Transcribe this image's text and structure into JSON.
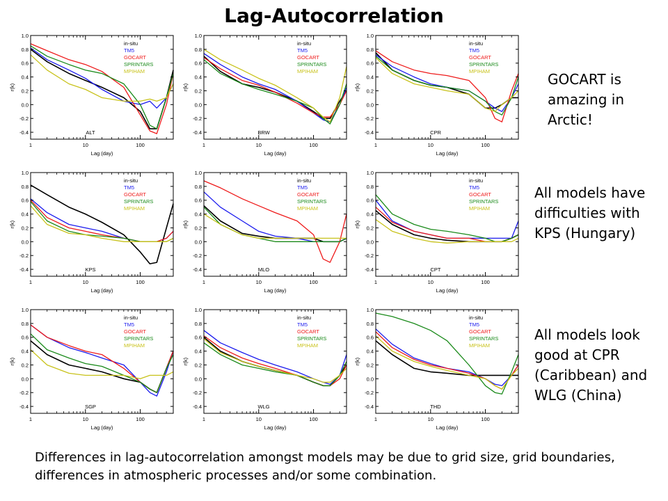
{
  "title": "Lag-Autocorrelation",
  "annotations": [
    "GOCART is\namazing in\nArctic!",
    "All models have\ndifficulties with\nKPS (Hungary)",
    "All models look\ngood at CPR\n(Caribbean) and\nWLG (China)"
  ],
  "footer": {
    "line1": "Differences in lag-autocorrelation amongst models may be due to grid size, grid boundaries,",
    "line2": "differences in atmospheric processes and/or some combination."
  },
  "colors": {
    "in-situ": "#000000",
    "TM5": "#1a1aee",
    "GOCART": "#ee1a1a",
    "SPRINTARS": "#1a8a1a",
    "MPIHAM": "#c8c21a"
  },
  "chart_data": [
    {
      "type": "line",
      "station": "ALT",
      "xlabel": "Lag (day)",
      "ylabel": "r(k)",
      "xscale": "log",
      "xlim": [
        1,
        400
      ],
      "ylim": [
        -0.5,
        1.0
      ],
      "xticks": [
        1,
        10,
        100
      ],
      "yticks": [
        -0.4,
        -0.2,
        0.0,
        0.2,
        0.4,
        0.6,
        0.8,
        1.0
      ],
      "legend": [
        "in-situ",
        "TM5",
        "GOCART",
        "SPRINTARS",
        "MPIHAM"
      ],
      "x": [
        1,
        2,
        5,
        10,
        20,
        50,
        100,
        150,
        200,
        300,
        400
      ],
      "series": [
        {
          "name": "in-situ",
          "values": [
            0.8,
            0.62,
            0.45,
            0.35,
            0.25,
            0.1,
            -0.1,
            -0.35,
            -0.35,
            0.1,
            0.5
          ]
        },
        {
          "name": "TM5",
          "values": [
            0.82,
            0.65,
            0.5,
            0.38,
            0.22,
            0.05,
            0.0,
            0.05,
            -0.05,
            0.1,
            0.3
          ]
        },
        {
          "name": "GOCART",
          "values": [
            0.88,
            0.78,
            0.65,
            0.58,
            0.48,
            0.25,
            -0.15,
            -0.38,
            -0.42,
            0.0,
            0.45
          ]
        },
        {
          "name": "SPRINTARS",
          "values": [
            0.85,
            0.7,
            0.58,
            0.5,
            0.45,
            0.3,
            0.0,
            -0.3,
            -0.35,
            0.1,
            0.45
          ]
        },
        {
          "name": "MPIHAM",
          "values": [
            0.72,
            0.5,
            0.3,
            0.22,
            0.1,
            0.05,
            0.05,
            0.08,
            0.05,
            0.1,
            0.3
          ]
        }
      ]
    },
    {
      "type": "line",
      "station": "BRW",
      "xlabel": "Lag (day)",
      "ylabel": "r(k)",
      "xscale": "log",
      "xlim": [
        1,
        400
      ],
      "ylim": [
        -0.5,
        1.0
      ],
      "xticks": [
        1,
        10,
        100
      ],
      "yticks": [
        -0.4,
        -0.2,
        0.0,
        0.2,
        0.4,
        0.6,
        0.8,
        1.0
      ],
      "legend": [
        "in-situ",
        "TM5",
        "GOCART",
        "SPRINTARS",
        "MPIHAM"
      ],
      "x": [
        1,
        2,
        5,
        10,
        20,
        50,
        100,
        150,
        200,
        300,
        400
      ],
      "series": [
        {
          "name": "in-situ",
          "values": [
            0.7,
            0.48,
            0.3,
            0.25,
            0.18,
            0.05,
            -0.1,
            -0.2,
            -0.2,
            0.05,
            0.2
          ]
        },
        {
          "name": "TM5",
          "values": [
            0.74,
            0.58,
            0.4,
            0.3,
            0.22,
            0.05,
            -0.12,
            -0.22,
            -0.25,
            0.0,
            0.25
          ]
        },
        {
          "name": "GOCART",
          "values": [
            0.68,
            0.52,
            0.35,
            0.28,
            0.18,
            0.02,
            -0.12,
            -0.18,
            -0.18,
            0.0,
            0.2
          ]
        },
        {
          "name": "SPRINTARS",
          "values": [
            0.65,
            0.45,
            0.3,
            0.22,
            0.15,
            0.05,
            -0.05,
            -0.2,
            -0.28,
            0.0,
            0.3
          ]
        },
        {
          "name": "MPIHAM",
          "values": [
            0.8,
            0.65,
            0.5,
            0.38,
            0.28,
            0.1,
            -0.05,
            -0.18,
            -0.25,
            0.1,
            0.55
          ]
        }
      ]
    },
    {
      "type": "line",
      "station": "CPR",
      "xlabel": "Lag (day)",
      "ylabel": "r(k)",
      "xscale": "log",
      "xlim": [
        1,
        400
      ],
      "ylim": [
        -0.5,
        1.0
      ],
      "xticks": [
        1,
        10,
        100
      ],
      "yticks": [
        -0.4,
        -0.2,
        0.0,
        0.2,
        0.4,
        0.6,
        0.8,
        1.0
      ],
      "legend": [
        "in-situ",
        "TM5",
        "GOCART",
        "SPRINTARS",
        "MPIHAM"
      ],
      "x": [
        1,
        2,
        5,
        10,
        20,
        50,
        100,
        150,
        200,
        300,
        400
      ],
      "series": [
        {
          "name": "in-situ",
          "values": [
            0.75,
            0.5,
            0.35,
            0.28,
            0.25,
            0.15,
            -0.05,
            -0.05,
            0.0,
            0.1,
            0.1
          ]
        },
        {
          "name": "TM5",
          "values": [
            0.72,
            0.55,
            0.4,
            0.3,
            0.25,
            0.2,
            0.05,
            -0.05,
            -0.1,
            0.1,
            0.3
          ]
        },
        {
          "name": "GOCART",
          "values": [
            0.78,
            0.62,
            0.5,
            0.45,
            0.42,
            0.35,
            0.1,
            -0.2,
            -0.25,
            0.2,
            0.45
          ]
        },
        {
          "name": "SPRINTARS",
          "values": [
            0.7,
            0.5,
            0.35,
            0.28,
            0.25,
            0.2,
            0.05,
            -0.1,
            -0.15,
            0.1,
            0.4
          ]
        },
        {
          "name": "MPIHAM",
          "values": [
            0.68,
            0.45,
            0.3,
            0.25,
            0.2,
            0.15,
            -0.05,
            -0.1,
            0.0,
            0.1,
            0.2
          ]
        }
      ]
    },
    {
      "type": "line",
      "station": "KPS",
      "xlabel": "Lag (day)",
      "ylabel": "r(k)",
      "xscale": "log",
      "xlim": [
        1,
        400
      ],
      "ylim": [
        -0.5,
        1.0
      ],
      "xticks": [
        1,
        10,
        100
      ],
      "yticks": [
        -0.4,
        -0.2,
        0.0,
        0.2,
        0.4,
        0.6,
        0.8,
        1.0
      ],
      "legend": [
        "in-situ",
        "TM5",
        "GOCART",
        "SPRINTARS",
        "MPIHAM"
      ],
      "x": [
        1,
        2,
        5,
        10,
        20,
        50,
        100,
        150,
        200,
        300,
        400
      ],
      "series": [
        {
          "name": "in-situ",
          "values": [
            0.82,
            0.68,
            0.5,
            0.4,
            0.28,
            0.1,
            -0.15,
            -0.32,
            -0.3,
            0.2,
            0.55
          ]
        },
        {
          "name": "TM5",
          "values": [
            0.62,
            0.42,
            0.25,
            0.2,
            0.15,
            0.05,
            0.0,
            0.0,
            0.0,
            0.05,
            0.15
          ]
        },
        {
          "name": "GOCART",
          "values": [
            0.6,
            0.35,
            0.2,
            0.15,
            0.1,
            0.05,
            0.0,
            0.0,
            0.0,
            0.05,
            0.15
          ]
        },
        {
          "name": "SPRINTARS",
          "values": [
            0.58,
            0.3,
            0.15,
            0.1,
            0.08,
            0.05,
            0.0,
            0.0,
            0.0,
            0.0,
            0.05
          ]
        },
        {
          "name": "MPIHAM",
          "values": [
            0.52,
            0.25,
            0.12,
            0.1,
            0.05,
            0.0,
            0.0,
            0.0,
            0.0,
            0.0,
            0.05
          ]
        }
      ]
    },
    {
      "type": "line",
      "station": "MLO",
      "xlabel": "Lag (day)",
      "ylabel": "r(k)",
      "xscale": "log",
      "xlim": [
        1,
        400
      ],
      "ylim": [
        -0.5,
        1.0
      ],
      "xticks": [
        1,
        10,
        100
      ],
      "yticks": [
        -0.4,
        -0.2,
        0.0,
        0.2,
        0.4,
        0.6,
        0.8,
        1.0
      ],
      "legend": [
        "in-situ",
        "TM5",
        "GOCART",
        "SPRINTARS",
        "MPIHAM"
      ],
      "x": [
        1,
        2,
        5,
        10,
        20,
        50,
        100,
        150,
        200,
        300,
        400
      ],
      "series": [
        {
          "name": "in-situ",
          "values": [
            0.52,
            0.3,
            0.12,
            0.08,
            0.05,
            0.05,
            0.05,
            0.0,
            0.0,
            0.0,
            0.05
          ]
        },
        {
          "name": "TM5",
          "values": [
            0.72,
            0.5,
            0.3,
            0.15,
            0.08,
            0.05,
            0.0,
            0.0,
            0.0,
            0.0,
            0.05
          ]
        },
        {
          "name": "GOCART",
          "values": [
            0.88,
            0.78,
            0.62,
            0.52,
            0.42,
            0.3,
            0.1,
            -0.25,
            -0.3,
            0.0,
            0.4
          ]
        },
        {
          "name": "SPRINTARS",
          "values": [
            0.5,
            0.25,
            0.1,
            0.05,
            0.0,
            0.0,
            0.0,
            0.0,
            0.0,
            0.0,
            0.05
          ]
        },
        {
          "name": "MPIHAM",
          "values": [
            0.4,
            0.25,
            0.1,
            0.05,
            0.05,
            0.05,
            0.05,
            0.05,
            0.05,
            0.05,
            0.05
          ]
        }
      ]
    },
    {
      "type": "line",
      "station": "CPT",
      "xlabel": "Lag (day)",
      "ylabel": "r(k)",
      "xscale": "log",
      "xlim": [
        1,
        400
      ],
      "ylim": [
        -0.5,
        1.0
      ],
      "xticks": [
        1,
        10,
        100
      ],
      "yticks": [
        -0.4,
        -0.2,
        0.0,
        0.2,
        0.4,
        0.6,
        0.8,
        1.0
      ],
      "legend": [
        "in-situ",
        "TM5",
        "GOCART",
        "SPRINTARS",
        "MPIHAM"
      ],
      "x": [
        1,
        2,
        5,
        10,
        20,
        50,
        100,
        150,
        200,
        300,
        400
      ],
      "series": [
        {
          "name": "in-situ",
          "values": [
            0.45,
            0.25,
            0.1,
            0.05,
            0.02,
            0.0,
            0.0,
            0.0,
            0.0,
            0.05,
            0.1
          ]
        },
        {
          "name": "TM5",
          "values": [
            0.6,
            0.3,
            0.15,
            0.1,
            0.05,
            0.05,
            0.05,
            0.05,
            0.05,
            0.05,
            0.3
          ]
        },
        {
          "name": "GOCART",
          "values": [
            0.5,
            0.28,
            0.15,
            0.1,
            0.05,
            0.05,
            0.0,
            0.0,
            0.0,
            0.05,
            0.1
          ]
        },
        {
          "name": "SPRINTARS",
          "values": [
            0.68,
            0.4,
            0.25,
            0.18,
            0.15,
            0.1,
            0.05,
            0.0,
            0.0,
            0.05,
            0.1
          ]
        },
        {
          "name": "MPIHAM",
          "values": [
            0.32,
            0.15,
            0.05,
            0.0,
            -0.02,
            0.0,
            0.0,
            0.0,
            0.0,
            0.0,
            0.05
          ]
        }
      ]
    },
    {
      "type": "line",
      "station": "SGP",
      "xlabel": "Lag (day)",
      "ylabel": "r(k)",
      "xscale": "log",
      "xlim": [
        1,
        400
      ],
      "ylim": [
        -0.5,
        1.0
      ],
      "xticks": [
        1,
        10,
        100
      ],
      "yticks": [
        -0.4,
        -0.2,
        0.0,
        0.2,
        0.4,
        0.6,
        0.8,
        1.0
      ],
      "legend": [
        "in-situ",
        "TM5",
        "GOCART",
        "SPRINTARS",
        "MPIHAM"
      ],
      "x": [
        1,
        2,
        5,
        10,
        20,
        50,
        100,
        150,
        200,
        300,
        400
      ],
      "series": [
        {
          "name": "in-situ",
          "values": [
            0.55,
            0.35,
            0.2,
            0.15,
            0.1,
            0.0,
            -0.05,
            -0.15,
            -0.2,
            0.15,
            0.4
          ]
        },
        {
          "name": "TM5",
          "values": [
            0.78,
            0.6,
            0.45,
            0.38,
            0.3,
            0.2,
            -0.05,
            -0.2,
            -0.25,
            0.1,
            0.4
          ]
        },
        {
          "name": "GOCART",
          "values": [
            0.78,
            0.6,
            0.48,
            0.4,
            0.35,
            0.15,
            -0.05,
            -0.15,
            -0.2,
            0.15,
            0.4
          ]
        },
        {
          "name": "SPRINTARS",
          "values": [
            0.65,
            0.42,
            0.3,
            0.22,
            0.18,
            0.05,
            -0.05,
            -0.15,
            -0.2,
            0.15,
            0.35
          ]
        },
        {
          "name": "MPIHAM",
          "values": [
            0.42,
            0.2,
            0.08,
            0.05,
            0.05,
            0.05,
            0.0,
            0.05,
            0.05,
            0.05,
            0.1
          ]
        }
      ]
    },
    {
      "type": "line",
      "station": "WLG",
      "xlabel": "Lag (day)",
      "ylabel": "r(k)",
      "xscale": "log",
      "xlim": [
        1,
        400
      ],
      "ylim": [
        -0.5,
        1.0
      ],
      "xticks": [
        1,
        10,
        100
      ],
      "yticks": [
        -0.4,
        -0.2,
        0.0,
        0.2,
        0.4,
        0.6,
        0.8,
        1.0
      ],
      "legend": [
        "in-situ",
        "TM5",
        "GOCART",
        "SPRINTARS",
        "MPIHAM"
      ],
      "x": [
        1,
        2,
        5,
        10,
        20,
        50,
        100,
        150,
        200,
        300,
        400
      ],
      "series": [
        {
          "name": "in-situ",
          "values": [
            0.6,
            0.4,
            0.25,
            0.18,
            0.12,
            0.05,
            -0.05,
            -0.1,
            -0.1,
            0.05,
            0.2
          ]
        },
        {
          "name": "TM5",
          "values": [
            0.7,
            0.52,
            0.38,
            0.28,
            0.2,
            0.1,
            0.0,
            -0.05,
            -0.08,
            0.05,
            0.35
          ]
        },
        {
          "name": "GOCART",
          "values": [
            0.62,
            0.45,
            0.3,
            0.22,
            0.15,
            0.05,
            -0.05,
            -0.1,
            -0.1,
            0.0,
            0.2
          ]
        },
        {
          "name": "SPRINTARS",
          "values": [
            0.52,
            0.35,
            0.2,
            0.15,
            0.1,
            0.05,
            -0.05,
            -0.1,
            -0.1,
            0.05,
            0.25
          ]
        },
        {
          "name": "MPIHAM",
          "values": [
            0.58,
            0.38,
            0.25,
            0.18,
            0.12,
            0.05,
            0.0,
            -0.05,
            -0.05,
            0.05,
            0.15
          ]
        }
      ]
    },
    {
      "type": "line",
      "station": "THD",
      "xlabel": "Lag (day)",
      "ylabel": "r(k)",
      "xscale": "log",
      "xlim": [
        1,
        400
      ],
      "ylim": [
        -0.5,
        1.0
      ],
      "xticks": [
        1,
        10,
        100
      ],
      "yticks": [
        -0.4,
        -0.2,
        0.0,
        0.2,
        0.4,
        0.6,
        0.8,
        1.0
      ],
      "legend": [
        "in-situ",
        "TM5",
        "GOCART",
        "SPRINTARS",
        "MPIHAM"
      ],
      "x": [
        1,
        2,
        5,
        10,
        20,
        50,
        100,
        150,
        200,
        300,
        400
      ],
      "series": [
        {
          "name": "in-situ",
          "values": [
            0.55,
            0.35,
            0.15,
            0.1,
            0.08,
            0.05,
            0.05,
            0.05,
            0.05,
            0.05,
            0.05
          ]
        },
        {
          "name": "TM5",
          "values": [
            0.72,
            0.5,
            0.3,
            0.22,
            0.15,
            0.1,
            0.0,
            -0.08,
            -0.1,
            0.05,
            0.2
          ]
        },
        {
          "name": "GOCART",
          "values": [
            0.68,
            0.45,
            0.28,
            0.2,
            0.15,
            0.08,
            0.0,
            -0.1,
            -0.15,
            0.05,
            0.2
          ]
        },
        {
          "name": "SPRINTARS",
          "values": [
            0.95,
            0.9,
            0.8,
            0.7,
            0.55,
            0.2,
            -0.1,
            -0.2,
            -0.22,
            0.1,
            0.35
          ]
        },
        {
          "name": "MPIHAM",
          "values": [
            0.62,
            0.4,
            0.25,
            0.18,
            0.12,
            0.05,
            0.0,
            -0.1,
            -0.15,
            0.05,
            0.15
          ]
        }
      ]
    }
  ]
}
